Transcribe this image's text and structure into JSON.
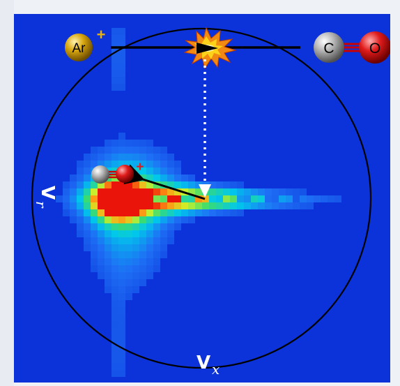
{
  "colors": {
    "background": "#0b33d9",
    "circle": "#000000",
    "arrow_dotted": "#ffffff",
    "arrow_solid": "#000000",
    "ar_atom": "#c79a0c",
    "carbon_atom": "#a8a8a8",
    "oxygen_atom": "#e01b1b",
    "charge_ar": "#e8b30f",
    "charge_co": "#e01b1b"
  },
  "labels": {
    "ar": "Ar",
    "ar_charge": "+",
    "c": "C",
    "o": "O",
    "co_charge": "+",
    "vx_bold": "V",
    "vx_sub": "x",
    "vr_bold": "V",
    "vr_sub": "r"
  },
  "icons": {
    "collision": "explosion-burst-icon",
    "ar_ion": "argon-ion-sphere-icon",
    "co_molecule": "co-molecule-icon",
    "co_product": "co-ion-icon"
  }
}
